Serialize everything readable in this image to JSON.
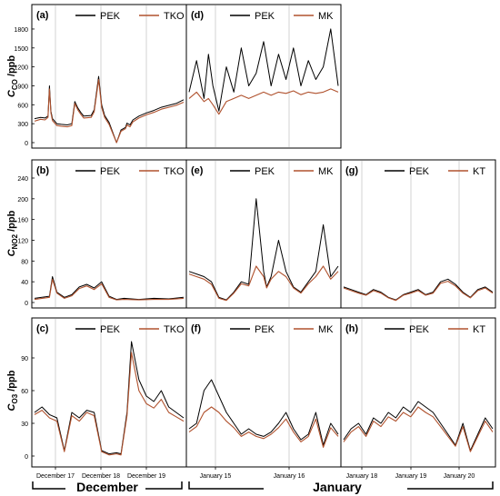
{
  "chart_data": [
    {
      "type": "line",
      "panel": "a",
      "label": "(a)",
      "legend": [
        {
          "name": "PEK",
          "color": "#000000"
        },
        {
          "name": "TKO",
          "color": "#b0522e"
        }
      ],
      "ylabel": "C_CO /ppb",
      "ylim": [
        0,
        1900
      ],
      "yticks": [
        0,
        300,
        600,
        900,
        1200,
        1500,
        1800
      ],
      "series": [
        {
          "name": "PEK",
          "color": "#000000",
          "x": [
            0,
            0.04,
            0.07,
            0.09,
            0.1,
            0.11,
            0.12,
            0.15,
            0.18,
            0.22,
            0.25,
            0.27,
            0.29,
            0.31,
            0.33,
            0.38,
            0.4,
            0.43,
            0.45,
            0.47,
            0.5,
            0.55,
            0.58,
            0.61,
            0.62,
            0.64,
            0.66,
            0.7,
            0.75,
            0.8,
            0.85,
            0.9,
            0.95,
            1
          ],
          "y": [
            380,
            400,
            390,
            420,
            900,
            500,
            380,
            300,
            290,
            280,
            300,
            650,
            550,
            480,
            420,
            430,
            520,
            1050,
            600,
            430,
            320,
            0,
            200,
            240,
            310,
            280,
            360,
            420,
            470,
            510,
            560,
            590,
            620,
            680
          ]
        },
        {
          "name": "TKO",
          "color": "#b0522e",
          "x": [
            0,
            0.04,
            0.07,
            0.09,
            0.1,
            0.11,
            0.12,
            0.15,
            0.18,
            0.22,
            0.25,
            0.27,
            0.29,
            0.31,
            0.33,
            0.38,
            0.4,
            0.43,
            0.45,
            0.47,
            0.5,
            0.55,
            0.58,
            0.61,
            0.62,
            0.64,
            0.66,
            0.7,
            0.75,
            0.8,
            0.85,
            0.9,
            0.95,
            1
          ],
          "y": [
            340,
            370,
            360,
            400,
            850,
            470,
            350,
            270,
            260,
            250,
            270,
            620,
            520,
            450,
            390,
            400,
            490,
            1000,
            560,
            400,
            290,
            0,
            180,
            220,
            280,
            250,
            330,
            390,
            440,
            480,
            530,
            560,
            590,
            640
          ]
        }
      ]
    },
    {
      "type": "line",
      "panel": "b",
      "label": "(b)",
      "legend": [
        {
          "name": "PEK",
          "color": "#000000"
        },
        {
          "name": "TKO",
          "color": "#b0522e"
        }
      ],
      "ylabel": "C_NO2 /ppb",
      "ylim": [
        0,
        240
      ],
      "yticks": [
        0,
        40,
        80,
        120,
        160,
        200,
        240
      ],
      "series": [
        {
          "name": "PEK",
          "color": "#000000",
          "x": [
            0,
            0.05,
            0.1,
            0.12,
            0.15,
            0.2,
            0.25,
            0.3,
            0.35,
            0.4,
            0.45,
            0.5,
            0.55,
            0.6,
            0.7,
            0.8,
            0.9,
            1
          ],
          "y": [
            8,
            10,
            12,
            50,
            20,
            10,
            15,
            30,
            35,
            28,
            40,
            12,
            6,
            8,
            6,
            8,
            7,
            10
          ]
        },
        {
          "name": "TKO",
          "color": "#b0522e",
          "x": [
            0,
            0.05,
            0.1,
            0.12,
            0.15,
            0.2,
            0.25,
            0.3,
            0.35,
            0.4,
            0.45,
            0.5,
            0.55,
            0.6,
            0.7,
            0.8,
            0.9,
            1
          ],
          "y": [
            6,
            8,
            10,
            45,
            18,
            8,
            13,
            27,
            32,
            25,
            36,
            10,
            5,
            6,
            5,
            6,
            6,
            8
          ]
        }
      ]
    },
    {
      "type": "line",
      "panel": "c",
      "label": "(c)",
      "legend": [
        {
          "name": "PEK",
          "color": "#000000"
        },
        {
          "name": "TKO",
          "color": "#b0522e"
        }
      ],
      "ylabel": "C_O3 /ppb",
      "ylim": [
        -5,
        110
      ],
      "yticks": [
        0,
        30,
        60,
        90
      ],
      "xticks": [
        "December 17",
        "December 18",
        "December 19"
      ],
      "series": [
        {
          "name": "PEK",
          "color": "#000000",
          "x": [
            0,
            0.05,
            0.1,
            0.15,
            0.2,
            0.25,
            0.3,
            0.35,
            0.4,
            0.45,
            0.5,
            0.55,
            0.58,
            0.62,
            0.65,
            0.7,
            0.75,
            0.8,
            0.85,
            0.9,
            0.95,
            1
          ],
          "y": [
            40,
            45,
            38,
            35,
            5,
            40,
            35,
            42,
            40,
            5,
            2,
            3,
            2,
            40,
            105,
            70,
            55,
            50,
            60,
            45,
            40,
            35
          ]
        },
        {
          "name": "TKO",
          "color": "#b0522e",
          "x": [
            0,
            0.05,
            0.1,
            0.15,
            0.2,
            0.25,
            0.3,
            0.35,
            0.4,
            0.45,
            0.5,
            0.55,
            0.58,
            0.62,
            0.65,
            0.7,
            0.75,
            0.8,
            0.85,
            0.9,
            0.95,
            1
          ],
          "y": [
            38,
            42,
            35,
            32,
            4,
            37,
            32,
            40,
            37,
            4,
            1,
            2,
            1,
            37,
            95,
            60,
            48,
            44,
            52,
            40,
            36,
            32
          ]
        }
      ]
    },
    {
      "type": "line",
      "panel": "d",
      "label": "(d)",
      "legend": [
        {
          "name": "PEK",
          "color": "#000000"
        },
        {
          "name": "MK",
          "color": "#b0522e"
        }
      ],
      "ylim": [
        0,
        1900
      ],
      "series": [
        {
          "name": "PEK",
          "color": "#000000",
          "x": [
            0,
            0.05,
            0.1,
            0.13,
            0.16,
            0.2,
            0.25,
            0.3,
            0.35,
            0.4,
            0.45,
            0.5,
            0.55,
            0.6,
            0.65,
            0.7,
            0.75,
            0.8,
            0.85,
            0.9,
            0.95,
            1
          ],
          "y": [
            800,
            1300,
            700,
            1400,
            900,
            500,
            1200,
            800,
            1500,
            900,
            1100,
            1600,
            900,
            1400,
            1000,
            1500,
            900,
            1300,
            1000,
            1200,
            1800,
            900
          ]
        },
        {
          "name": "MK",
          "color": "#b0522e",
          "x": [
            0,
            0.05,
            0.1,
            0.13,
            0.16,
            0.2,
            0.25,
            0.3,
            0.35,
            0.4,
            0.45,
            0.5,
            0.55,
            0.6,
            0.65,
            0.7,
            0.75,
            0.8,
            0.85,
            0.9,
            0.95,
            1
          ],
          "y": [
            700,
            800,
            650,
            700,
            600,
            450,
            650,
            700,
            750,
            700,
            750,
            800,
            750,
            800,
            780,
            820,
            760,
            800,
            780,
            800,
            850,
            800
          ]
        }
      ]
    },
    {
      "type": "line",
      "panel": "e",
      "label": "(e)",
      "legend": [
        {
          "name": "PEK",
          "color": "#000000"
        },
        {
          "name": "MK",
          "color": "#b0522e"
        }
      ],
      "ylim": [
        0,
        240
      ],
      "series": [
        {
          "name": "PEK",
          "color": "#000000",
          "x": [
            0,
            0.05,
            0.1,
            0.15,
            0.2,
            0.25,
            0.3,
            0.35,
            0.4,
            0.45,
            0.5,
            0.52,
            0.55,
            0.6,
            0.65,
            0.7,
            0.75,
            0.8,
            0.85,
            0.9,
            0.95,
            1
          ],
          "y": [
            60,
            55,
            50,
            40,
            10,
            5,
            20,
            40,
            35,
            200,
            60,
            30,
            50,
            120,
            60,
            30,
            20,
            40,
            60,
            150,
            50,
            70
          ]
        },
        {
          "name": "MK",
          "color": "#b0522e",
          "x": [
            0,
            0.05,
            0.1,
            0.15,
            0.2,
            0.25,
            0.3,
            0.35,
            0.4,
            0.45,
            0.5,
            0.52,
            0.55,
            0.6,
            0.65,
            0.7,
            0.75,
            0.8,
            0.85,
            0.9,
            0.95,
            1
          ],
          "y": [
            55,
            50,
            45,
            35,
            8,
            4,
            18,
            36,
            32,
            70,
            50,
            28,
            45,
            60,
            50,
            28,
            18,
            36,
            50,
            70,
            45,
            60
          ]
        }
      ]
    },
    {
      "type": "line",
      "panel": "f",
      "label": "(f)",
      "legend": [
        {
          "name": "PEK",
          "color": "#000000"
        },
        {
          "name": "MK",
          "color": "#b0522e"
        }
      ],
      "ylim": [
        -5,
        110
      ],
      "xticks": [
        "January 15",
        "January 16"
      ],
      "series": [
        {
          "name": "PEK",
          "color": "#000000",
          "x": [
            0,
            0.05,
            0.1,
            0.15,
            0.2,
            0.25,
            0.3,
            0.35,
            0.4,
            0.45,
            0.5,
            0.55,
            0.6,
            0.65,
            0.7,
            0.75,
            0.8,
            0.85,
            0.9,
            0.95,
            1
          ],
          "y": [
            25,
            30,
            60,
            70,
            55,
            40,
            30,
            20,
            25,
            20,
            18,
            22,
            30,
            40,
            25,
            15,
            20,
            40,
            10,
            30,
            20
          ]
        },
        {
          "name": "MK",
          "color": "#b0522e",
          "x": [
            0,
            0.05,
            0.1,
            0.15,
            0.2,
            0.25,
            0.3,
            0.35,
            0.4,
            0.45,
            0.5,
            0.55,
            0.6,
            0.65,
            0.7,
            0.75,
            0.8,
            0.85,
            0.9,
            0.95,
            1
          ],
          "y": [
            22,
            27,
            40,
            45,
            40,
            32,
            26,
            18,
            22,
            18,
            16,
            20,
            26,
            34,
            22,
            13,
            18,
            34,
            8,
            26,
            18
          ]
        }
      ]
    },
    {
      "type": "line",
      "panel": "g",
      "label": "(g)",
      "legend": [
        {
          "name": "PEK",
          "color": "#000000"
        },
        {
          "name": "KT",
          "color": "#b0522e"
        }
      ],
      "ylim": [
        0,
        240
      ],
      "series": [
        {
          "name": "PEK",
          "color": "#000000",
          "x": [
            0,
            0.05,
            0.1,
            0.15,
            0.2,
            0.25,
            0.3,
            0.35,
            0.4,
            0.45,
            0.5,
            0.55,
            0.6,
            0.65,
            0.7,
            0.75,
            0.8,
            0.85,
            0.9,
            0.95,
            1
          ],
          "y": [
            30,
            25,
            20,
            15,
            25,
            20,
            10,
            5,
            15,
            20,
            25,
            15,
            20,
            40,
            45,
            35,
            20,
            10,
            25,
            30,
            20
          ]
        },
        {
          "name": "KT",
          "color": "#b0522e",
          "x": [
            0,
            0.05,
            0.1,
            0.15,
            0.2,
            0.25,
            0.3,
            0.35,
            0.4,
            0.45,
            0.5,
            0.55,
            0.6,
            0.65,
            0.7,
            0.75,
            0.8,
            0.85,
            0.9,
            0.95,
            1
          ],
          "y": [
            28,
            23,
            18,
            14,
            23,
            18,
            9,
            4,
            14,
            18,
            23,
            14,
            18,
            37,
            41,
            32,
            18,
            9,
            23,
            28,
            18
          ]
        }
      ]
    },
    {
      "type": "line",
      "panel": "h",
      "label": "(h)",
      "legend": [
        {
          "name": "PEK",
          "color": "#000000"
        },
        {
          "name": "KT",
          "color": "#b0522e"
        }
      ],
      "ylim": [
        -5,
        110
      ],
      "xticks": [
        "January 18",
        "January 19",
        "January 20"
      ],
      "series": [
        {
          "name": "PEK",
          "color": "#000000",
          "x": [
            0,
            0.05,
            0.1,
            0.15,
            0.2,
            0.25,
            0.3,
            0.35,
            0.4,
            0.45,
            0.5,
            0.55,
            0.6,
            0.65,
            0.7,
            0.75,
            0.8,
            0.85,
            0.9,
            0.95,
            1
          ],
          "y": [
            15,
            25,
            30,
            20,
            35,
            30,
            40,
            35,
            45,
            40,
            50,
            45,
            40,
            30,
            20,
            10,
            30,
            5,
            20,
            35,
            25
          ]
        },
        {
          "name": "KT",
          "color": "#b0522e",
          "x": [
            0,
            0.05,
            0.1,
            0.15,
            0.2,
            0.25,
            0.3,
            0.35,
            0.4,
            0.45,
            0.5,
            0.55,
            0.6,
            0.65,
            0.7,
            0.75,
            0.8,
            0.85,
            0.9,
            0.95,
            1
          ],
          "y": [
            13,
            22,
            27,
            18,
            32,
            27,
            36,
            32,
            40,
            36,
            45,
            40,
            36,
            27,
            18,
            9,
            27,
            4,
            18,
            32,
            22
          ]
        }
      ]
    }
  ],
  "month_labels": [
    "December",
    "January"
  ]
}
